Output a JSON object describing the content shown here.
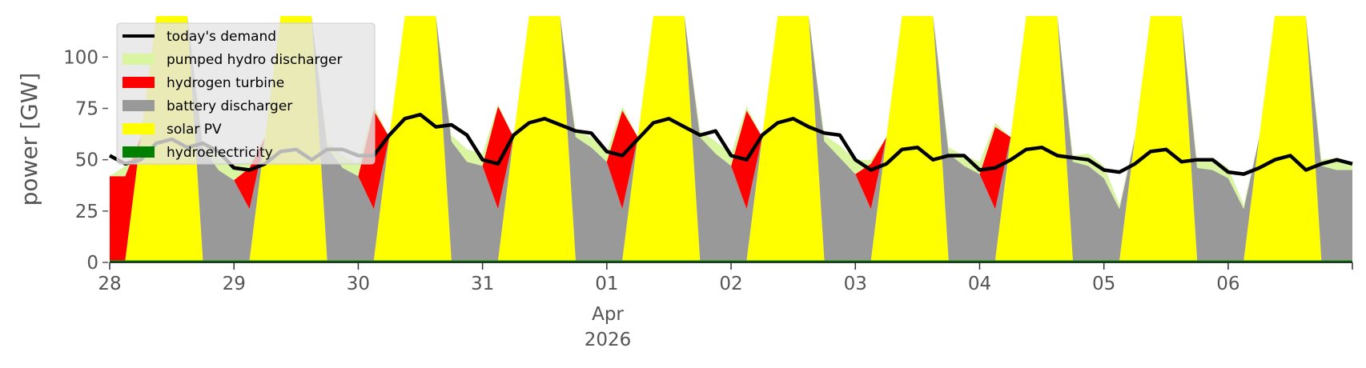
{
  "chart_data": {
    "type": "area",
    "ylabel": "power [GW]",
    "ylim": [
      0,
      120
    ],
    "xlim": [
      "2026-03-28T00:00",
      "2026-04-06T23:59"
    ],
    "grid": false,
    "legend_placement": "top-left",
    "yticks": [
      0,
      25,
      50,
      75,
      100
    ],
    "yticklabels": [
      "0",
      "25",
      "50",
      "75",
      "100"
    ],
    "xticks": [
      "2026-03-28",
      "2026-03-29",
      "2026-03-30",
      "2026-03-31",
      "2026-04-01",
      "2026-04-02",
      "2026-04-03",
      "2026-04-04",
      "2026-04-05",
      "2026-04-06"
    ],
    "xticklabels": [
      "28",
      "29",
      "30",
      "31",
      "01",
      "02",
      "03",
      "04",
      "05",
      "06"
    ],
    "x_secondary_labels": [
      {
        "date": "2026-04-01",
        "lines": [
          "Apr",
          "2026"
        ]
      }
    ],
    "x": [
      "2026-03-28T00:00",
      "2026-03-28T03:00",
      "2026-03-28T06:00",
      "2026-03-28T09:00",
      "2026-03-28T12:00",
      "2026-03-28T15:00",
      "2026-03-28T18:00",
      "2026-03-28T21:00",
      "2026-03-29T00:00",
      "2026-03-29T03:00",
      "2026-03-29T06:00",
      "2026-03-29T09:00",
      "2026-03-29T12:00",
      "2026-03-29T15:00",
      "2026-03-29T18:00",
      "2026-03-29T21:00",
      "2026-03-30T00:00",
      "2026-03-30T03:00",
      "2026-03-30T06:00",
      "2026-03-30T09:00",
      "2026-03-30T12:00",
      "2026-03-30T15:00",
      "2026-03-30T18:00",
      "2026-03-30T21:00",
      "2026-03-31T00:00",
      "2026-03-31T03:00",
      "2026-03-31T06:00",
      "2026-03-31T09:00",
      "2026-03-31T12:00",
      "2026-03-31T15:00",
      "2026-03-31T18:00",
      "2026-03-31T21:00",
      "2026-04-01T00:00",
      "2026-04-01T03:00",
      "2026-04-01T06:00",
      "2026-04-01T09:00",
      "2026-04-01T12:00",
      "2026-04-01T15:00",
      "2026-04-01T18:00",
      "2026-04-01T21:00",
      "2026-04-02T00:00",
      "2026-04-02T03:00",
      "2026-04-02T06:00",
      "2026-04-02T09:00",
      "2026-04-02T12:00",
      "2026-04-02T15:00",
      "2026-04-02T18:00",
      "2026-04-02T21:00",
      "2026-04-03T00:00",
      "2026-04-03T03:00",
      "2026-04-03T06:00",
      "2026-04-03T09:00",
      "2026-04-03T12:00",
      "2026-04-03T15:00",
      "2026-04-03T18:00",
      "2026-04-03T21:00",
      "2026-04-04T00:00",
      "2026-04-04T03:00",
      "2026-04-04T06:00",
      "2026-04-04T09:00",
      "2026-04-04T12:00",
      "2026-04-04T15:00",
      "2026-04-04T18:00",
      "2026-04-04T21:00",
      "2026-04-05T00:00",
      "2026-04-05T03:00",
      "2026-04-05T06:00",
      "2026-04-05T09:00",
      "2026-04-05T12:00",
      "2026-04-05T15:00",
      "2026-04-05T18:00",
      "2026-04-05T21:00",
      "2026-04-06T00:00",
      "2026-04-06T03:00",
      "2026-04-06T06:00",
      "2026-04-06T09:00",
      "2026-04-06T12:00",
      "2026-04-06T15:00",
      "2026-04-06T18:00",
      "2026-04-06T21:00",
      "2026-04-06T23:59"
    ],
    "series": [
      {
        "name": "hydroelectricity",
        "type": "area",
        "color": "#008000",
        "values": [
          1,
          1,
          1,
          1,
          1,
          1,
          1,
          1,
          1,
          1,
          1,
          1,
          1,
          1,
          1,
          1,
          1,
          1,
          1,
          1,
          1,
          1,
          1,
          1,
          1,
          1,
          1,
          1,
          1,
          1,
          1,
          1,
          1,
          1,
          1,
          1,
          1,
          1,
          1,
          1,
          1,
          1,
          1,
          1,
          1,
          1,
          1,
          1,
          1,
          1,
          1,
          1,
          1,
          1,
          1,
          1,
          1,
          1,
          1,
          1,
          1,
          1,
          1,
          1,
          1,
          1,
          1,
          1,
          1,
          1,
          1,
          1,
          1,
          1,
          1,
          1,
          1,
          1,
          1,
          1,
          1
        ]
      },
      {
        "name": "solar PV",
        "type": "area",
        "color": "#ffff00",
        "values": [
          0,
          0,
          60,
          120,
          120,
          120,
          0,
          0,
          0,
          0,
          60,
          120,
          120,
          120,
          0,
          0,
          0,
          0,
          60,
          120,
          120,
          120,
          0,
          0,
          0,
          0,
          60,
          120,
          120,
          120,
          0,
          0,
          0,
          0,
          60,
          120,
          120,
          120,
          0,
          0,
          0,
          0,
          60,
          120,
          120,
          120,
          0,
          0,
          0,
          0,
          60,
          120,
          120,
          120,
          0,
          0,
          0,
          0,
          60,
          120,
          120,
          120,
          0,
          0,
          0,
          0,
          60,
          120,
          120,
          120,
          0,
          0,
          0,
          0,
          60,
          120,
          120,
          120,
          0,
          0,
          0
        ]
      },
      {
        "name": "battery discharger",
        "type": "area",
        "color": "#999999",
        "values": [
          0,
          0,
          0,
          0,
          0,
          0,
          55,
          44,
          39,
          25,
          0,
          0,
          0,
          0,
          55,
          45,
          41,
          25,
          0,
          0,
          0,
          0,
          58,
          48,
          46,
          25,
          0,
          0,
          0,
          0,
          60,
          55,
          48,
          25,
          0,
          0,
          0,
          0,
          60,
          52,
          46,
          25,
          0,
          0,
          0,
          0,
          58,
          50,
          42,
          25,
          0,
          0,
          0,
          0,
          52,
          46,
          42,
          25,
          0,
          0,
          0,
          0,
          48,
          46,
          40,
          25,
          0,
          0,
          0,
          0,
          45,
          44,
          40,
          25,
          0,
          0,
          0,
          0,
          46,
          44,
          44
        ]
      },
      {
        "name": "hydrogen turbine",
        "type": "area",
        "color": "#ff0000",
        "values": [
          41,
          41,
          0,
          0,
          0,
          0,
          0,
          0,
          0,
          20,
          0,
          0,
          0,
          0,
          0,
          0,
          0,
          48,
          0,
          0,
          0,
          0,
          0,
          0,
          0,
          50,
          0,
          0,
          0,
          0,
          0,
          0,
          0,
          48,
          0,
          0,
          0,
          0,
          0,
          0,
          0,
          48,
          0,
          0,
          0,
          0,
          0,
          0,
          0,
          22,
          0,
          0,
          0,
          0,
          0,
          0,
          0,
          40,
          0,
          0,
          0,
          0,
          0,
          0,
          0,
          0,
          0,
          0,
          0,
          0,
          0,
          0,
          0,
          0,
          0,
          0,
          0,
          0,
          0,
          0,
          0
        ]
      },
      {
        "name": "pumped hydro discharger",
        "type": "area",
        "color": "#d9f5a0",
        "values": [
          0,
          5,
          0,
          0,
          0,
          0,
          3,
          6,
          8,
          3,
          0,
          0,
          0,
          0,
          3,
          6,
          6,
          2,
          0,
          0,
          0,
          0,
          3,
          6,
          6,
          1,
          0,
          0,
          0,
          0,
          3,
          5,
          5,
          2,
          0,
          0,
          0,
          0,
          3,
          6,
          6,
          2,
          0,
          0,
          0,
          0,
          3,
          6,
          7,
          2,
          0,
          0,
          0,
          0,
          3,
          5,
          6,
          2,
          0,
          0,
          0,
          0,
          3,
          6,
          6,
          2,
          0,
          0,
          0,
          0,
          3,
          6,
          5,
          2,
          0,
          0,
          0,
          0,
          3,
          6,
          3
        ]
      },
      {
        "name": "today's demand",
        "type": "line",
        "color": "#000000",
        "values": [
          52,
          48,
          50,
          58,
          60,
          56,
          58,
          54,
          46,
          45,
          48,
          54,
          55,
          50,
          55,
          55,
          52,
          52,
          62,
          70,
          72,
          66,
          67,
          62,
          50,
          48,
          62,
          68,
          70,
          67,
          64,
          63,
          54,
          52,
          60,
          68,
          70,
          66,
          62,
          64,
          52,
          50,
          62,
          68,
          70,
          66,
          63,
          62,
          50,
          45,
          48,
          55,
          56,
          50,
          52,
          52,
          45,
          46,
          50,
          55,
          56,
          52,
          51,
          50,
          45,
          44,
          48,
          54,
          55,
          49,
          50,
          50,
          44,
          43,
          46,
          50,
          52,
          45,
          48,
          50,
          48
        ]
      }
    ]
  }
}
